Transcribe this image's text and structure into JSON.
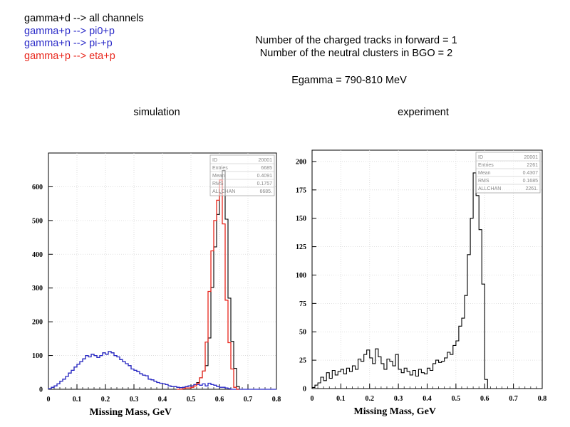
{
  "legend": [
    {
      "text": "gamma+d --> all channels",
      "color": "#000000"
    },
    {
      "text": "gamma+p --> pi0+p",
      "color": "#2a2ac8"
    },
    {
      "text": "gamma+n --> pi-+p",
      "color": "#2a2ac8"
    },
    {
      "text": "gamma+p --> eta+p",
      "color": "#e8261c"
    }
  ],
  "conditions": {
    "line1": "Number of the charged tracks in forward = 1",
    "line2": "Number of the neutral clusters in BGO = 2",
    "egamma": "Egamma = 790-810 MeV"
  },
  "chart_data": [
    {
      "type": "line",
      "label": "simulation",
      "xlabel": "Missing Mass, GeV",
      "ylabel": "",
      "xlim": [
        0,
        0.8
      ],
      "ylim": [
        0,
        700
      ],
      "xticks": [
        "0",
        "0.1",
        "0.2",
        "0.3",
        "0.4",
        "0.5",
        "0.6",
        "0.7",
        "0.8"
      ],
      "yticks": [
        "0",
        "100",
        "200",
        "300",
        "400",
        "500",
        "600"
      ],
      "grid": true,
      "stats": [
        [
          "ID",
          "20001"
        ],
        [
          "Entries",
          "6685"
        ],
        [
          "Mean",
          "0.4091"
        ],
        [
          "RMS",
          "0.1757"
        ],
        [
          "ALLCHAN",
          "6685."
        ]
      ],
      "bin_width": 0.01,
      "series": [
        {
          "color": "#000000",
          "x0": 0.0,
          "values": [
            2,
            6,
            10,
            16,
            24,
            30,
            38,
            48,
            56,
            66,
            74,
            82,
            90,
            100,
            96,
            104,
            100,
            94,
            100,
            108,
            104,
            112,
            108,
            100,
            96,
            88,
            82,
            76,
            70,
            60,
            56,
            52,
            46,
            42,
            40,
            30,
            28,
            24,
            20,
            18,
            16,
            14,
            10,
            8,
            8,
            6,
            5,
            6,
            8,
            10,
            10,
            14,
            20,
            34,
            54,
            70,
            152,
            302,
            422,
            518,
            580,
            648,
            504,
            270,
            142,
            62,
            8,
            0,
            0,
            0,
            0,
            0,
            0,
            0,
            0,
            0,
            0,
            0,
            0,
            0
          ]
        },
        {
          "color": "#2a2ac8",
          "x0": 0.0,
          "values": [
            2,
            6,
            10,
            16,
            24,
            30,
            38,
            48,
            56,
            66,
            74,
            82,
            90,
            100,
            96,
            104,
            100,
            94,
            100,
            108,
            104,
            112,
            108,
            100,
            96,
            88,
            82,
            76,
            70,
            60,
            56,
            52,
            46,
            42,
            40,
            30,
            28,
            24,
            20,
            18,
            16,
            14,
            10,
            8,
            8,
            6,
            5,
            6,
            8,
            10,
            10,
            14,
            14,
            12,
            16,
            10,
            18,
            14,
            12,
            8,
            6,
            6,
            4,
            2,
            0,
            0,
            0,
            0,
            0,
            0,
            0,
            0,
            0,
            0,
            0,
            0,
            0,
            0,
            0,
            0
          ]
        },
        {
          "color": "#e8261c",
          "x0": 0.45,
          "values": [
            0,
            0,
            2,
            4,
            4,
            6,
            10,
            18,
            34,
            54,
            140,
            290,
            410,
            500,
            560,
            620,
            490,
            264,
            138,
            60,
            6,
            0
          ]
        }
      ]
    },
    {
      "type": "line",
      "label": "experiment",
      "xlabel": "Missing Mass, GeV",
      "ylabel": "",
      "xlim": [
        0,
        0.8
      ],
      "ylim": [
        0,
        210
      ],
      "xticks": [
        "0",
        "0.1",
        "0.2",
        "0.3",
        "0.4",
        "0.5",
        "0.6",
        "0.7",
        "0.8"
      ],
      "yticks": [
        "0",
        "25",
        "50",
        "75",
        "100",
        "125",
        "150",
        "175",
        "200"
      ],
      "grid": true,
      "stats": [
        [
          "ID",
          "20001"
        ],
        [
          "Entries",
          "2261"
        ],
        [
          "Mean",
          "0.4307"
        ],
        [
          "RMS",
          "0.1685"
        ],
        [
          "ALLCHAN",
          "2261."
        ]
      ],
      "bin_width": 0.01,
      "series": [
        {
          "color": "#000000",
          "x0": 0.0,
          "values": [
            1,
            3,
            5,
            10,
            7,
            14,
            9,
            16,
            12,
            15,
            17,
            13,
            18,
            15,
            20,
            17,
            26,
            24,
            30,
            34,
            27,
            22,
            35,
            28,
            22,
            17,
            26,
            24,
            20,
            30,
            17,
            14,
            18,
            15,
            12,
            16,
            11,
            17,
            14,
            13,
            18,
            16,
            22,
            25,
            23,
            24,
            27,
            32,
            30,
            38,
            42,
            55,
            62,
            82,
            118,
            150,
            190,
            170,
            140,
            92,
            8,
            0,
            0,
            0,
            0,
            0,
            0,
            0,
            0,
            0,
            0,
            0,
            0,
            0,
            0,
            0,
            0,
            0,
            0,
            0
          ]
        }
      ]
    }
  ]
}
